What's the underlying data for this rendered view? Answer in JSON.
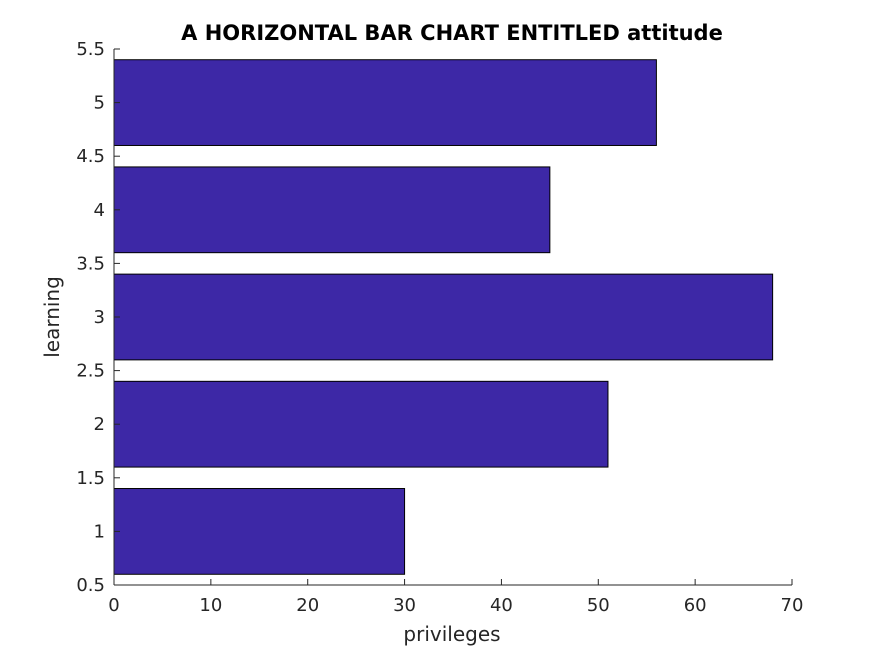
{
  "chart_data": {
    "type": "bar",
    "orientation": "horizontal",
    "title": "A HORIZONTAL BAR CHART ENTITLED attitude",
    "xlabel": "privileges",
    "ylabel": "learning",
    "categories": [
      1,
      2,
      3,
      4,
      5
    ],
    "values": [
      30,
      51,
      68,
      45,
      56
    ],
    "xlim": [
      0,
      70
    ],
    "ylim": [
      0.5,
      5.5
    ],
    "xticks": [
      "0",
      "10",
      "20",
      "30",
      "40",
      "50",
      "60",
      "70"
    ],
    "yticks": [
      "0.5",
      "1",
      "1.5",
      "2",
      "2.5",
      "3",
      "3.5",
      "4",
      "4.5",
      "5",
      "5.5"
    ],
    "bar_color": "#3d28a6",
    "grid": false,
    "legend": "none"
  }
}
